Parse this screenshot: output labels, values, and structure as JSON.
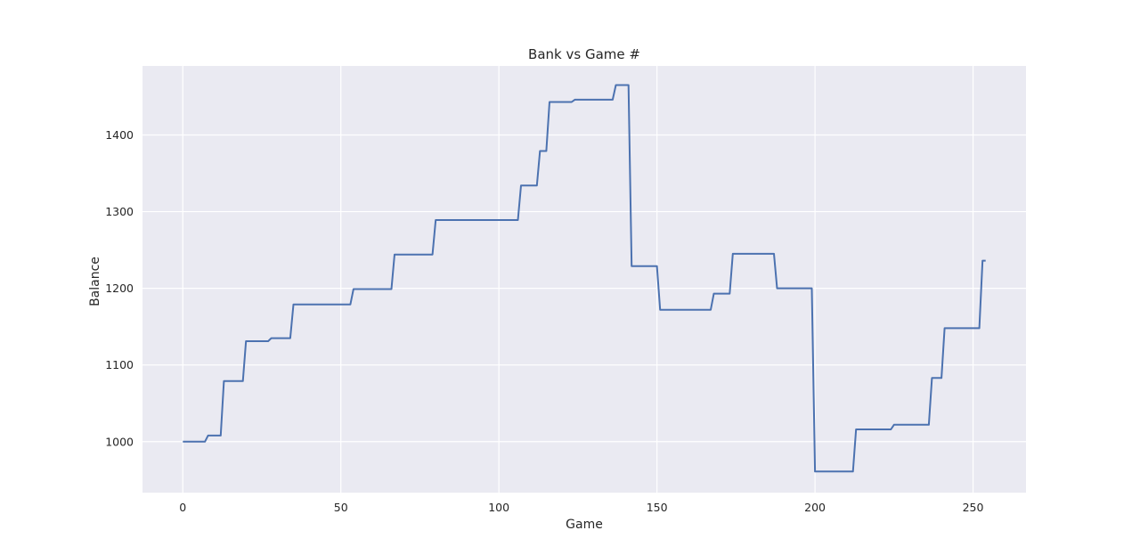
{
  "chart_data": {
    "type": "line",
    "title": "Bank vs Game #",
    "xlabel": "Game",
    "ylabel": "Balance",
    "xlim": [
      -12.75,
      266.75
    ],
    "ylim": [
      933.5,
      1490
    ],
    "xticks": [
      0,
      50,
      100,
      150,
      200,
      250
    ],
    "yticks": [
      1000,
      1100,
      1200,
      1300,
      1400
    ],
    "grid": true,
    "colors": {
      "background": "#eaeaf2",
      "grid": "#ffffff",
      "line": "#4c72b0"
    },
    "series": [
      {
        "x": [
          0,
          7,
          8,
          12,
          13,
          19,
          20,
          27,
          28,
          34,
          35,
          53,
          54,
          66,
          67,
          79,
          80,
          106,
          107,
          112,
          113,
          115,
          116,
          123,
          124,
          136,
          137,
          141,
          142,
          150,
          151,
          167,
          168,
          173,
          174,
          187,
          188,
          199,
          200,
          212,
          213,
          224,
          225,
          236,
          237,
          240,
          241,
          252,
          253,
          254
        ],
        "y": [
          1000,
          1000,
          1008,
          1008,
          1079,
          1079,
          1131,
          1131,
          1135,
          1135,
          1179,
          1179,
          1199,
          1199,
          1244,
          1244,
          1289,
          1289,
          1334,
          1334,
          1379,
          1379,
          1443,
          1443,
          1446,
          1446,
          1465,
          1465,
          1229,
          1229,
          1172,
          1172,
          1193,
          1193,
          1245,
          1245,
          1200,
          1200,
          961,
          961,
          1016,
          1016,
          1022,
          1022,
          1083,
          1083,
          1148,
          1148,
          1236,
          1236
        ]
      }
    ]
  }
}
